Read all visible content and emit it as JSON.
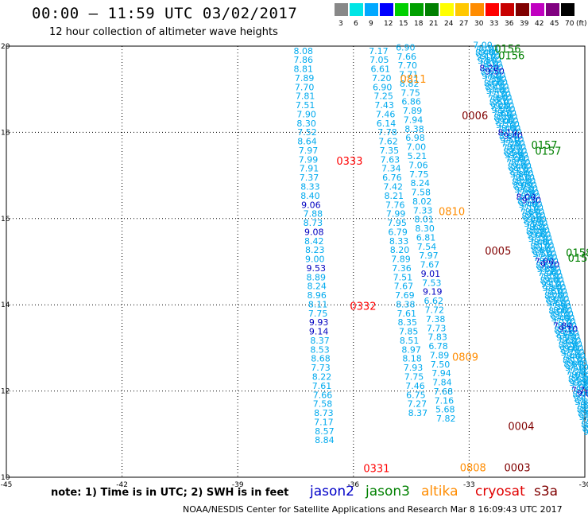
{
  "header": {
    "title": "00:00 – 11:59 UTC 03/02/2017",
    "subtitle": "12 hour collection of altimeter wave heights"
  },
  "colorbar": {
    "unit": "(ft)",
    "colors": [
      "#888888",
      "#00e5e5",
      "#00a8ff",
      "#0000ff",
      "#00d000",
      "#00a000",
      "#008000",
      "#ffff00",
      "#ffc800",
      "#ff8c00",
      "#ff0000",
      "#c80000",
      "#800000",
      "#c000c0",
      "#800080",
      "#000000"
    ],
    "labels": [
      "3",
      "6",
      "9",
      "12",
      "15",
      "18",
      "21",
      "24",
      "27",
      "30",
      "33",
      "36",
      "39",
      "42",
      "45",
      "70"
    ]
  },
  "map": {
    "lon_ticks": [
      "-45",
      "-42",
      "-39",
      "-36",
      "-33",
      "-30"
    ],
    "lat_ticks": [
      "20",
      "18",
      "16",
      "14",
      "12",
      "10"
    ],
    "lon_range": [
      -45,
      -30
    ],
    "lat_range": [
      10,
      20
    ],
    "grid": "dotted",
    "tracks": [
      {
        "name_anchor": "track-a",
        "color_note": "mixed",
        "points": [
          {
            "lon": -37.3,
            "lat": 19.82,
            "v": "8.08"
          },
          {
            "lon": -37.3,
            "lat": 19.61,
            "v": "7.86"
          },
          {
            "lon": -37.3,
            "lat": 19.4,
            "v": "8.81"
          },
          {
            "lon": -37.27,
            "lat": 19.19,
            "v": "7.89"
          },
          {
            "lon": -37.27,
            "lat": 18.98,
            "v": "7.70"
          },
          {
            "lon": -37.25,
            "lat": 18.77,
            "v": "7.81"
          },
          {
            "lon": -37.25,
            "lat": 18.56,
            "v": "7.51"
          },
          {
            "lon": -37.22,
            "lat": 18.35,
            "v": "7.90"
          },
          {
            "lon": -37.22,
            "lat": 18.14,
            "v": "8.30"
          },
          {
            "lon": -37.2,
            "lat": 17.93,
            "v": "7.52"
          },
          {
            "lon": -37.2,
            "lat": 17.72,
            "v": "8.64"
          },
          {
            "lon": -37.17,
            "lat": 17.51,
            "v": "7.97"
          },
          {
            "lon": -37.17,
            "lat": 17.3,
            "v": "7.99"
          },
          {
            "lon": -37.15,
            "lat": 17.09,
            "v": "7.91"
          },
          {
            "lon": -37.15,
            "lat": 16.88,
            "v": "7.37"
          },
          {
            "lon": -37.12,
            "lat": 16.67,
            "v": "8.33"
          },
          {
            "lon": -37.12,
            "lat": 16.46,
            "v": "8.40"
          },
          {
            "lon": -37.1,
            "lat": 16.25,
            "v": "9.06",
            "c": "#0000c0"
          },
          {
            "lon": -37.05,
            "lat": 16.04,
            "v": "7.88"
          },
          {
            "lon": -37.05,
            "lat": 15.83,
            "v": "8.73"
          },
          {
            "lon": -37.02,
            "lat": 15.62,
            "v": "9.08",
            "c": "#0000c0"
          },
          {
            "lon": -37.02,
            "lat": 15.41,
            "v": "8.42"
          },
          {
            "lon": -37.0,
            "lat": 15.2,
            "v": "8.23"
          },
          {
            "lon": -37.0,
            "lat": 14.99,
            "v": "9.00"
          },
          {
            "lon": -36.97,
            "lat": 14.78,
            "v": "9.53",
            "c": "#0000c0"
          },
          {
            "lon": -36.97,
            "lat": 14.57,
            "v": "8.89"
          },
          {
            "lon": -36.95,
            "lat": 14.36,
            "v": "8.24"
          },
          {
            "lon": -36.95,
            "lat": 14.15,
            "v": "8.96"
          },
          {
            "lon": -36.92,
            "lat": 13.94,
            "v": "8.11"
          },
          {
            "lon": -36.92,
            "lat": 13.73,
            "v": "7.75"
          },
          {
            "lon": -36.9,
            "lat": 13.52,
            "v": "9.93",
            "c": "#0000c0"
          },
          {
            "lon": -36.9,
            "lat": 13.31,
            "v": "9.14",
            "c": "#0000c0"
          },
          {
            "lon": -36.87,
            "lat": 13.1,
            "v": "8.37"
          },
          {
            "lon": -36.87,
            "lat": 12.89,
            "v": "8.53"
          },
          {
            "lon": -36.85,
            "lat": 12.68,
            "v": "8.68"
          },
          {
            "lon": -36.85,
            "lat": 12.47,
            "v": "7.73"
          },
          {
            "lon": -36.82,
            "lat": 12.26,
            "v": "8.22"
          },
          {
            "lon": -36.82,
            "lat": 12.05,
            "v": "7.61"
          },
          {
            "lon": -36.8,
            "lat": 11.84,
            "v": "7.66"
          },
          {
            "lon": -36.8,
            "lat": 11.63,
            "v": "7.58"
          },
          {
            "lon": -36.77,
            "lat": 11.42,
            "v": "8.73"
          },
          {
            "lon": -36.77,
            "lat": 11.21,
            "v": "7.17"
          },
          {
            "lon": -36.75,
            "lat": 11.0,
            "v": "8.57"
          },
          {
            "lon": -36.75,
            "lat": 10.79,
            "v": "8.84"
          }
        ]
      },
      {
        "name_anchor": "track-b",
        "points": [
          {
            "lon": -35.35,
            "lat": 19.82,
            "v": "7.17"
          },
          {
            "lon": -35.33,
            "lat": 19.61,
            "v": "7.05"
          },
          {
            "lon": -35.3,
            "lat": 19.4,
            "v": "6.61"
          },
          {
            "lon": -35.27,
            "lat": 19.19,
            "v": "7.20"
          },
          {
            "lon": -35.25,
            "lat": 18.98,
            "v": "6.90"
          },
          {
            "lon": -35.22,
            "lat": 18.77,
            "v": "7.25"
          },
          {
            "lon": -35.2,
            "lat": 18.56,
            "v": "7.43"
          },
          {
            "lon": -35.17,
            "lat": 18.35,
            "v": "7.46"
          },
          {
            "lon": -35.15,
            "lat": 18.14,
            "v": "6.14"
          },
          {
            "lon": -35.12,
            "lat": 17.93,
            "v": "7.78"
          },
          {
            "lon": -35.1,
            "lat": 17.72,
            "v": "7.62"
          },
          {
            "lon": -35.07,
            "lat": 17.51,
            "v": "7.35"
          },
          {
            "lon": -35.05,
            "lat": 17.3,
            "v": "7.63"
          },
          {
            "lon": -35.02,
            "lat": 17.09,
            "v": "7.34"
          },
          {
            "lon": -35.0,
            "lat": 16.88,
            "v": "6.76"
          },
          {
            "lon": -34.97,
            "lat": 16.67,
            "v": "7.42"
          },
          {
            "lon": -34.95,
            "lat": 16.46,
            "v": "8.21"
          },
          {
            "lon": -34.92,
            "lat": 16.25,
            "v": "7.76"
          },
          {
            "lon": -34.9,
            "lat": 16.04,
            "v": "7.99"
          },
          {
            "lon": -34.87,
            "lat": 15.83,
            "v": "7.95"
          },
          {
            "lon": -34.85,
            "lat": 15.62,
            "v": "6.79"
          },
          {
            "lon": -34.82,
            "lat": 15.41,
            "v": "8.33"
          },
          {
            "lon": -34.8,
            "lat": 15.2,
            "v": "8.20"
          },
          {
            "lon": -34.77,
            "lat": 14.99,
            "v": "7.89"
          },
          {
            "lon": -34.75,
            "lat": 14.78,
            "v": "7.36"
          },
          {
            "lon": -34.72,
            "lat": 14.57,
            "v": "7.51"
          },
          {
            "lon": -34.7,
            "lat": 14.36,
            "v": "7.67"
          },
          {
            "lon": -34.67,
            "lat": 14.15,
            "v": "7.69"
          },
          {
            "lon": -34.65,
            "lat": 13.94,
            "v": "8.38"
          },
          {
            "lon": -34.62,
            "lat": 13.73,
            "v": "7.61"
          },
          {
            "lon": -34.6,
            "lat": 13.52,
            "v": "8.35"
          },
          {
            "lon": -34.57,
            "lat": 13.31,
            "v": "7.85"
          },
          {
            "lon": -34.55,
            "lat": 13.1,
            "v": "8.51"
          },
          {
            "lon": -34.5,
            "lat": 12.89,
            "v": "8.97"
          },
          {
            "lon": -34.48,
            "lat": 12.68,
            "v": "8.18"
          },
          {
            "lon": -34.45,
            "lat": 12.47,
            "v": "7.93"
          },
          {
            "lon": -34.43,
            "lat": 12.26,
            "v": "7.75"
          },
          {
            "lon": -34.4,
            "lat": 12.05,
            "v": "7.46"
          },
          {
            "lon": -34.38,
            "lat": 11.84,
            "v": "6.75"
          },
          {
            "lon": -34.35,
            "lat": 11.63,
            "v": "7.27"
          },
          {
            "lon": -34.33,
            "lat": 11.42,
            "v": "8.37"
          }
        ]
      },
      {
        "name_anchor": "track-c",
        "points": [
          {
            "lon": -34.65,
            "lat": 19.9,
            "v": "6.90"
          },
          {
            "lon": -34.62,
            "lat": 19.69,
            "v": "7.66"
          },
          {
            "lon": -34.6,
            "lat": 19.48,
            "v": "7.70"
          },
          {
            "lon": -34.57,
            "lat": 19.27,
            "v": "7.71"
          },
          {
            "lon": -34.55,
            "lat": 19.06,
            "v": "8.82"
          },
          {
            "lon": -34.52,
            "lat": 18.85,
            "v": "7.75"
          },
          {
            "lon": -34.5,
            "lat": 18.64,
            "v": "6.86"
          },
          {
            "lon": -34.47,
            "lat": 18.43,
            "v": "7.89"
          },
          {
            "lon": -34.45,
            "lat": 18.22,
            "v": "7.94"
          },
          {
            "lon": -34.42,
            "lat": 18.01,
            "v": "8.38"
          },
          {
            "lon": -34.4,
            "lat": 17.8,
            "v": "6.98"
          },
          {
            "lon": -34.37,
            "lat": 17.59,
            "v": "7.00"
          },
          {
            "lon": -34.35,
            "lat": 17.38,
            "v": "5.21"
          },
          {
            "lon": -34.32,
            "lat": 17.17,
            "v": "7.06"
          },
          {
            "lon": -34.3,
            "lat": 16.96,
            "v": "7.75"
          },
          {
            "lon": -34.27,
            "lat": 16.75,
            "v": "8.24"
          },
          {
            "lon": -34.25,
            "lat": 16.54,
            "v": "7.58"
          },
          {
            "lon": -34.22,
            "lat": 16.33,
            "v": "8.02"
          },
          {
            "lon": -34.2,
            "lat": 16.12,
            "v": "7.33"
          },
          {
            "lon": -34.17,
            "lat": 15.91,
            "v": "8.01"
          },
          {
            "lon": -34.15,
            "lat": 15.7,
            "v": "8.30"
          },
          {
            "lon": -34.12,
            "lat": 15.49,
            "v": "6.81"
          },
          {
            "lon": -34.1,
            "lat": 15.28,
            "v": "7.54"
          },
          {
            "lon": -34.05,
            "lat": 15.07,
            "v": "7.97"
          },
          {
            "lon": -34.02,
            "lat": 14.86,
            "v": "7.67"
          },
          {
            "lon": -34.0,
            "lat": 14.65,
            "v": "9.01",
            "c": "#0000c0"
          },
          {
            "lon": -33.97,
            "lat": 14.44,
            "v": "7.53"
          },
          {
            "lon": -33.95,
            "lat": 14.23,
            "v": "9.19",
            "c": "#0000c0"
          },
          {
            "lon": -33.92,
            "lat": 14.02,
            "v": "6.62"
          },
          {
            "lon": -33.9,
            "lat": 13.81,
            "v": "7.72"
          },
          {
            "lon": -33.87,
            "lat": 13.6,
            "v": "7.38"
          },
          {
            "lon": -33.85,
            "lat": 13.39,
            "v": "7.73"
          },
          {
            "lon": -33.82,
            "lat": 13.18,
            "v": "7.83"
          },
          {
            "lon": -33.8,
            "lat": 12.97,
            "v": "6.78"
          },
          {
            "lon": -33.77,
            "lat": 12.76,
            "v": "7.89"
          },
          {
            "lon": -33.75,
            "lat": 12.55,
            "v": "7.50"
          },
          {
            "lon": -33.72,
            "lat": 12.34,
            "v": "7.94"
          },
          {
            "lon": -33.7,
            "lat": 12.13,
            "v": "7.84"
          },
          {
            "lon": -33.67,
            "lat": 11.92,
            "v": "7.68"
          },
          {
            "lon": -33.65,
            "lat": 11.71,
            "v": "7.16"
          },
          {
            "lon": -33.62,
            "lat": 11.5,
            "v": "5.68"
          },
          {
            "lon": -33.6,
            "lat": 11.29,
            "v": "7.82"
          }
        ]
      }
    ],
    "pass_labels": [
      {
        "text": "0156",
        "lon": -32.0,
        "lat": 19.85,
        "color": "#008000"
      },
      {
        "text": "0156",
        "lon": -31.9,
        "lat": 19.7,
        "color": "#008000"
      },
      {
        "text": "0811",
        "lon": -34.45,
        "lat": 19.15,
        "color": "#ff8c00"
      },
      {
        "text": "0006",
        "lon": -32.85,
        "lat": 18.3,
        "color": "#800000"
      },
      {
        "text": "0157",
        "lon": -31.05,
        "lat": 17.62,
        "color": "#008000"
      },
      {
        "text": "0157",
        "lon": -30.95,
        "lat": 17.48,
        "color": "#008000"
      },
      {
        "text": "0333",
        "lon": -36.1,
        "lat": 17.25,
        "color": "#ff0000"
      },
      {
        "text": "0810",
        "lon": -33.45,
        "lat": 16.08,
        "color": "#ff8c00"
      },
      {
        "text": "0005",
        "lon": -32.25,
        "lat": 15.17,
        "color": "#800000"
      },
      {
        "text": "0158",
        "lon": -30.15,
        "lat": 15.12,
        "color": "#008000"
      },
      {
        "text": "0158",
        "lon": -30.1,
        "lat": 15.0,
        "color": "#008000"
      },
      {
        "text": "0332",
        "lon": -35.75,
        "lat": 13.88,
        "color": "#ff0000"
      },
      {
        "text": "0809",
        "lon": -33.1,
        "lat": 12.7,
        "color": "#ff8c00"
      },
      {
        "text": "0004",
        "lon": -31.65,
        "lat": 11.1,
        "color": "#800000"
      },
      {
        "text": "0331",
        "lon": -35.4,
        "lat": 10.12,
        "color": "#ff0000"
      },
      {
        "text": "0808",
        "lon": -32.9,
        "lat": 10.14,
        "color": "#ff8c00"
      },
      {
        "text": "0003",
        "lon": -31.75,
        "lat": 10.14,
        "color": "#800000"
      }
    ]
  },
  "footer": {
    "note": "note: 1) Time is in UTC; 2) SWH is in feet",
    "satellites": [
      {
        "name": "jason2",
        "color": "#0000c8"
      },
      {
        "name": "jason3",
        "color": "#008000"
      },
      {
        "name": "altika",
        "color": "#ff8c00"
      },
      {
        "name": "cryosat",
        "color": "#e00000"
      },
      {
        "name": "s3a",
        "color": "#800000"
      }
    ],
    "credit": "NOAA/NESDIS Center for Satellite Applications and Research   Mar  8 16:09:43 UTC 2017"
  }
}
